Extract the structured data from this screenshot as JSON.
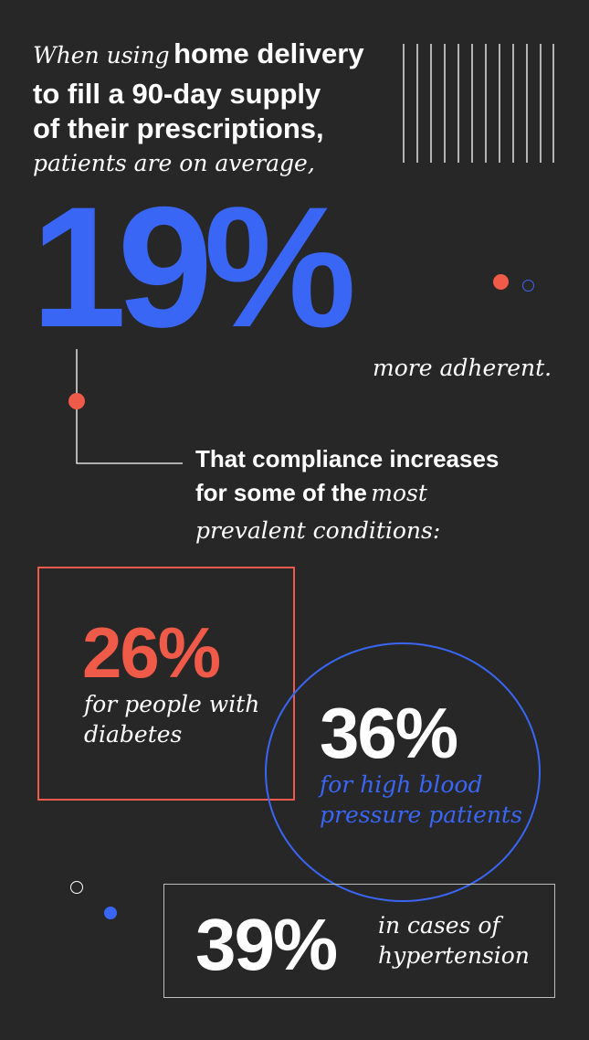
{
  "intro": {
    "lead_italic": "When using",
    "lead_bold": "home delivery",
    "line2": "to fill a 90-day supply",
    "line3": "of their prescriptions,",
    "line4": "patients are on average,"
  },
  "headline": {
    "value": "19%",
    "suffix": "more adherent."
  },
  "compliance": {
    "line1": "That compliance increases",
    "line2_bold": "for some of the",
    "line2_italic": "most",
    "line3": "prevalent conditions:"
  },
  "stats": [
    {
      "value": "26%",
      "label_line1": "for people with",
      "label_line2": "diabetes"
    },
    {
      "value": "36%",
      "label_line1": "for high blood",
      "label_line2": "pressure patients"
    },
    {
      "value": "39%",
      "label_line1": "in cases of",
      "label_line2": "hypertension"
    }
  ],
  "colors": {
    "background": "#272727",
    "blue": "#3a66f6",
    "coral": "#f05a48",
    "text": "#ffffff"
  }
}
